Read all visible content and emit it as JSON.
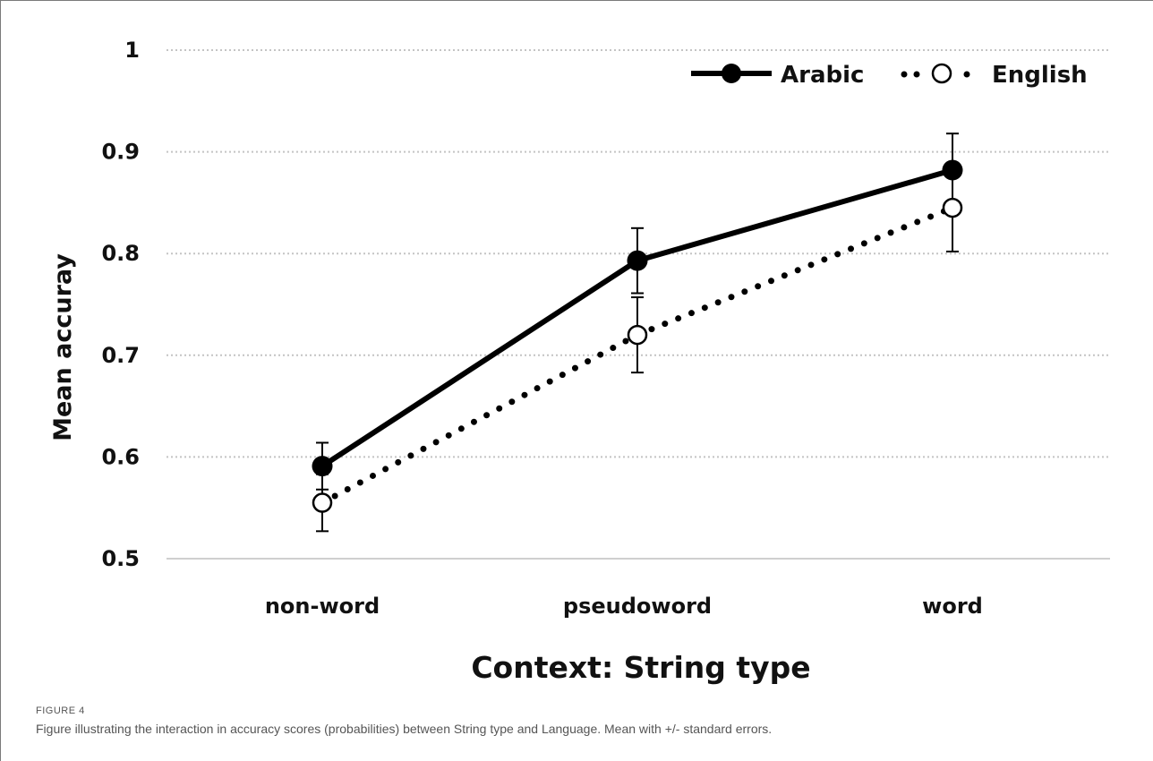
{
  "figure": {
    "label": "FIGURE 4",
    "caption": "Figure illustrating the interaction in accuracy scores (probabilities) between String type and Language. Mean with +/- standard errors."
  },
  "chart_data": {
    "type": "line",
    "title": "",
    "xlabel": "Context: String type",
    "ylabel": "Mean accuray",
    "categories": [
      "non-word",
      "pseudoword",
      "word"
    ],
    "ylim": [
      0.5,
      1.0
    ],
    "yticks": [
      0.5,
      0.6,
      0.7,
      0.8,
      0.9,
      1.0
    ],
    "ytick_labels": [
      "0.5",
      "0.6",
      "0.7",
      "0.8",
      "0.9",
      "1"
    ],
    "grid": "horizontal dotted",
    "legend_position": "top-right",
    "series": [
      {
        "name": "Arabic",
        "style": "solid line, filled circle markers",
        "color": "#000000",
        "values": [
          0.591,
          0.793,
          0.882
        ],
        "errors": [
          0.023,
          0.032,
          0.036
        ]
      },
      {
        "name": "English",
        "style": "dotted line, open circle markers",
        "color": "#000000",
        "values": [
          0.555,
          0.72,
          0.845
        ],
        "errors": [
          0.028,
          0.037,
          0.043
        ]
      }
    ]
  }
}
